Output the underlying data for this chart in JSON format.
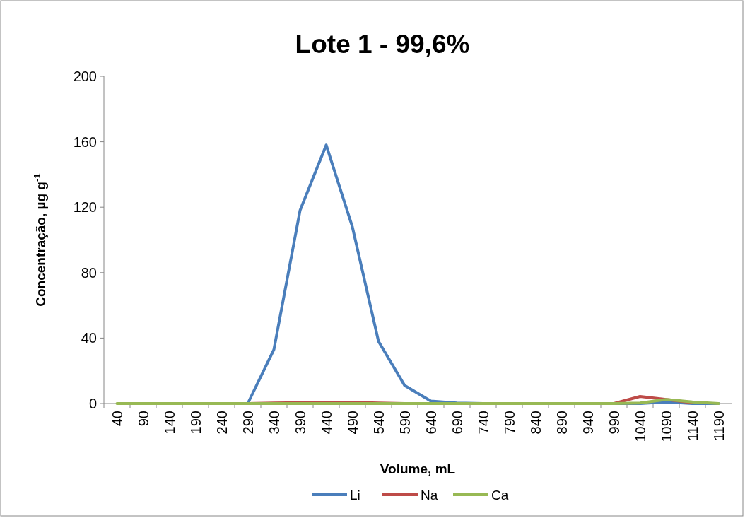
{
  "chart_data": {
    "type": "line",
    "title": "Lote 1 - 99,6%",
    "xlabel": "Volume, mL",
    "ylabel": "Concentração, µg g$^{-1}$",
    "categories": [
      "40",
      "90",
      "140",
      "190",
      "240",
      "290",
      "340",
      "390",
      "440",
      "490",
      "540",
      "590",
      "640",
      "690",
      "740",
      "790",
      "840",
      "890",
      "940",
      "990",
      "1040",
      "1090",
      "1140",
      "1190"
    ],
    "series": [
      {
        "name": "Li",
        "color": "#4a7ebb",
        "values": [
          null,
          null,
          null,
          null,
          0,
          0,
          33,
          118,
          158,
          108,
          38,
          11,
          1.5,
          0.3,
          0,
          0,
          0,
          0,
          0,
          0,
          0,
          1,
          0,
          0
        ]
      },
      {
        "name": "Na",
        "color": "#be4b48",
        "values": [
          null,
          null,
          null,
          null,
          null,
          0,
          0.3,
          0.5,
          0.7,
          0.7,
          0.3,
          0,
          null,
          null,
          null,
          null,
          null,
          null,
          null,
          0,
          4.3,
          2.5,
          0.5,
          null
        ]
      },
      {
        "name": "Ca",
        "color": "#98b954",
        "values": [
          0,
          0,
          0,
          0,
          0,
          0,
          0,
          0,
          0,
          0,
          0,
          0,
          0,
          0,
          0,
          0,
          0,
          0,
          0,
          0,
          0.3,
          2.5,
          1,
          0
        ]
      }
    ],
    "ylim": [
      0,
      200
    ],
    "yticks": [
      0,
      40,
      80,
      120,
      160,
      200
    ],
    "grid": false,
    "legend": "bottom",
    "marker": "none",
    "line_style": "solid"
  }
}
